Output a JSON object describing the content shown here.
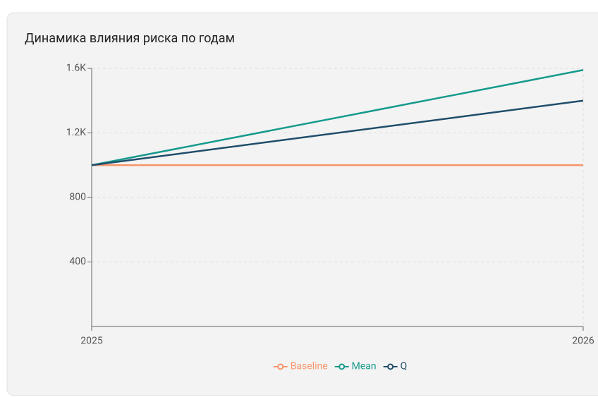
{
  "chart_data": {
    "type": "line",
    "title": "Динамика влияния риска по годам",
    "categories": [
      "2025",
      "2026"
    ],
    "series": [
      {
        "name": "Baseline",
        "color": "#f7956a",
        "values": [
          1000,
          1000
        ]
      },
      {
        "name": "Mean",
        "color": "#159a8c",
        "values": [
          1000,
          1590
        ]
      },
      {
        "name": "Q",
        "color": "#1f4d6a",
        "values": [
          1000,
          1400
        ]
      }
    ],
    "ylim": [
      0,
      1600
    ],
    "yticks": [
      400,
      800,
      {
        "value": 1200,
        "label": "1.2K"
      },
      {
        "value": 1600,
        "label": "1.6K"
      }
    ],
    "grid": true,
    "legend": "bottom"
  }
}
